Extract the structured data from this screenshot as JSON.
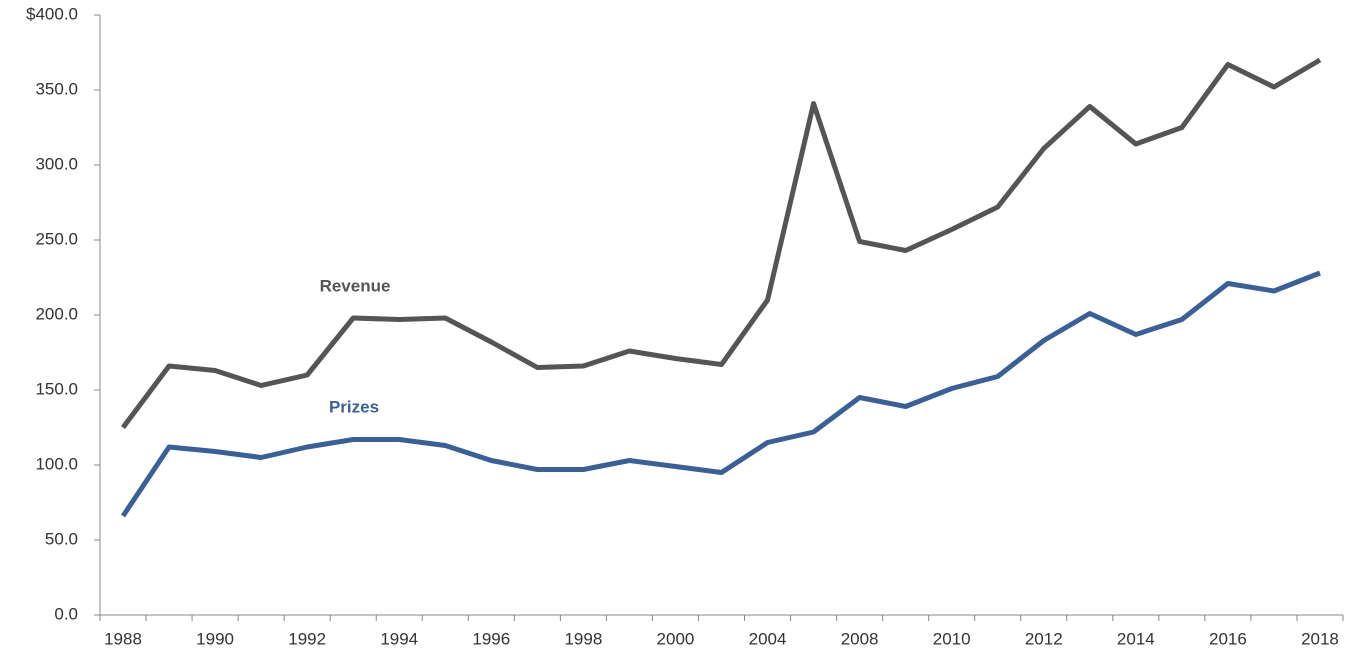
{
  "chart_data": {
    "type": "line",
    "categories": [
      "1988",
      null,
      "1990",
      null,
      "1992",
      null,
      "1994",
      null,
      "1996",
      null,
      "1998",
      null,
      "2000",
      null,
      "2004",
      null,
      "2008",
      null,
      "2010",
      null,
      "2012",
      null,
      "2014",
      null,
      "2016",
      null,
      "2018"
    ],
    "series": [
      {
        "name": "Revenue",
        "color": "#555555",
        "values": [
          125,
          166,
          163,
          153,
          160,
          198,
          197,
          198,
          182,
          165,
          166,
          176,
          171,
          167,
          210,
          341,
          249,
          243,
          257,
          272,
          311,
          339,
          314,
          325,
          367,
          352,
          370
        ]
      },
      {
        "name": "Prizes",
        "color": "#3b6095",
        "values": [
          66,
          112,
          109,
          105,
          112,
          117,
          117,
          113,
          103,
          97,
          97,
          103,
          99,
          95,
          115,
          122,
          145,
          139,
          151,
          159,
          183,
          201,
          187,
          197,
          221,
          216,
          228
        ]
      }
    ],
    "ylim": [
      0,
      400
    ],
    "yticks": [
      {
        "value": 0,
        "label": "0.0"
      },
      {
        "value": 50,
        "label": "50.0"
      },
      {
        "value": 100,
        "label": "100.0"
      },
      {
        "value": 150,
        "label": "150.0"
      },
      {
        "value": 200,
        "label": "200.0"
      },
      {
        "value": 250,
        "label": "250.0"
      },
      {
        "value": 300,
        "label": "300.0"
      },
      {
        "value": 350,
        "label": "350.0"
      },
      {
        "value": 400,
        "label": "$400.0"
      }
    ],
    "grid": false
  }
}
